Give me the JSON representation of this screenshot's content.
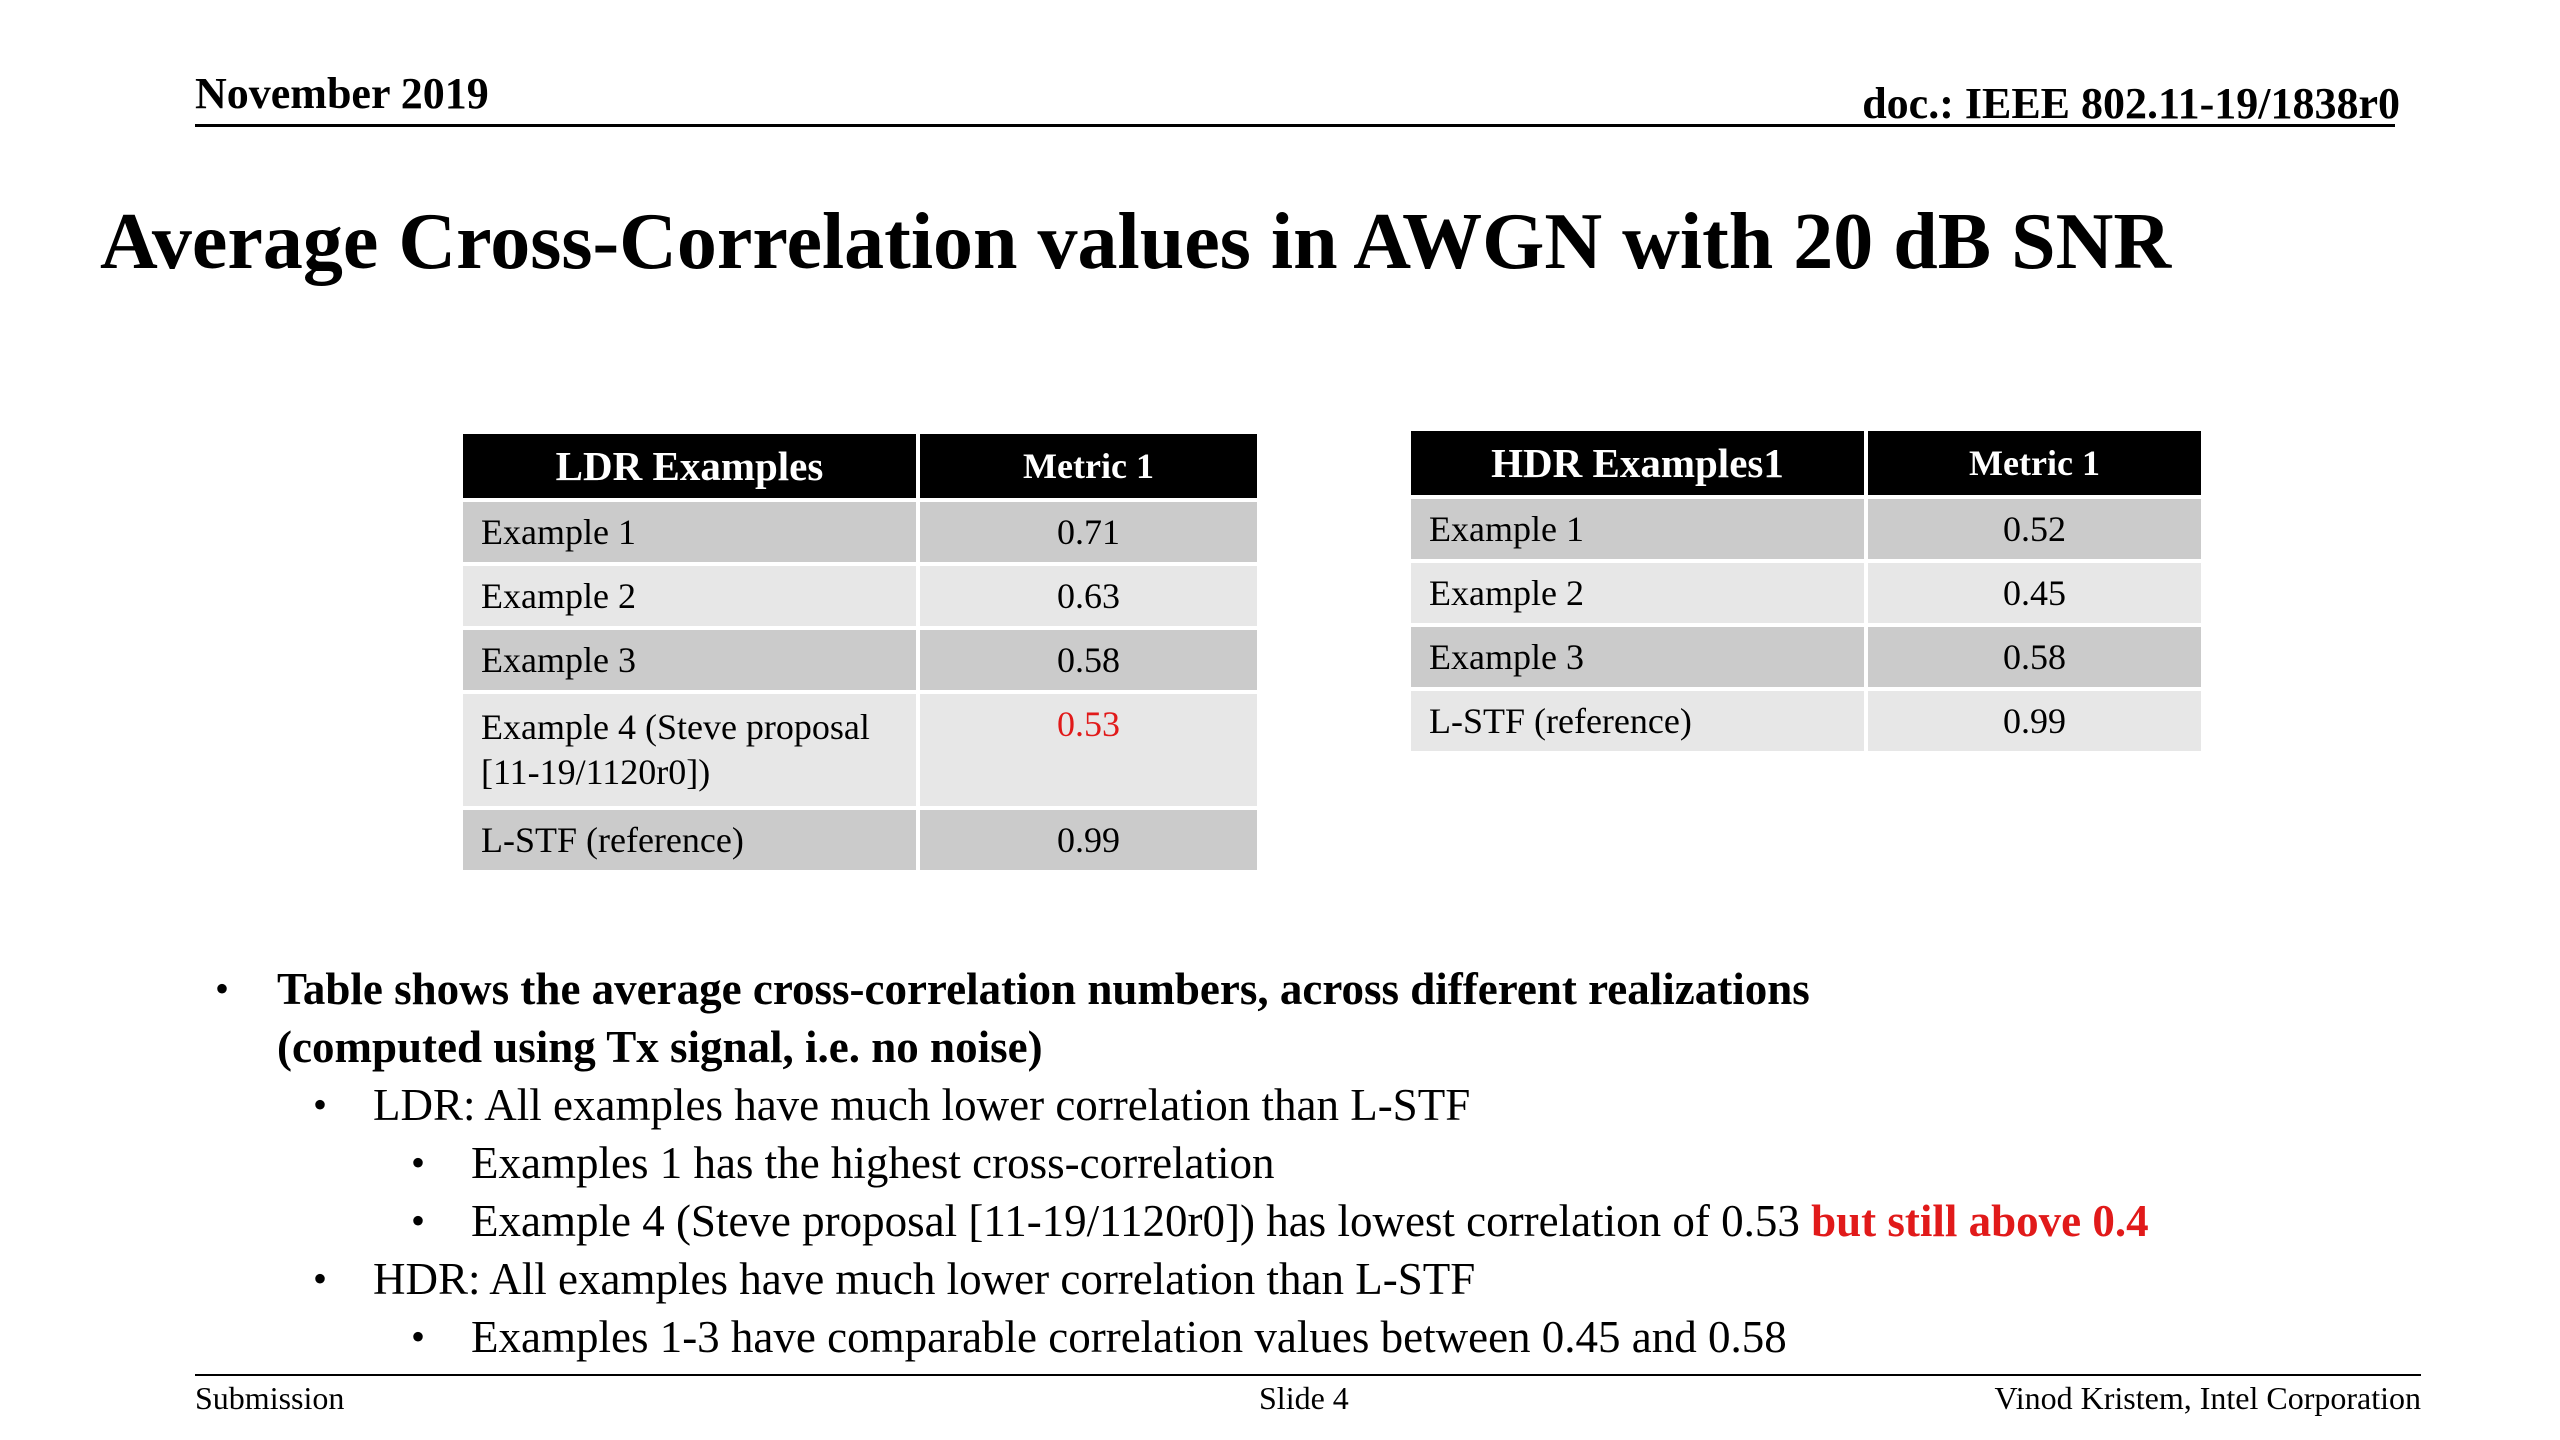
{
  "header": {
    "date": "November 2019",
    "doc_id": "doc.: IEEE 802.11-19/1838r0"
  },
  "title": "Average Cross-Correlation values in AWGN with 20 dB SNR",
  "ldr_table": {
    "headers": [
      "LDR Examples",
      "Metric 1"
    ],
    "rows": [
      {
        "name": "Example 1",
        "value": "0.71"
      },
      {
        "name": "Example 2",
        "value": "0.63"
      },
      {
        "name": "Example 3",
        "value": "0.58"
      },
      {
        "name_line1": "Example 4 (Steve proposal",
        "name_line2": "[11-19/1120r0])",
        "value": "0.53",
        "value_color": "#e11a1a"
      },
      {
        "name": "L-STF (reference)",
        "value": "0.99"
      }
    ]
  },
  "hdr_table": {
    "headers": [
      "HDR Examples1",
      "Metric 1"
    ],
    "rows": [
      {
        "name": "Example 1",
        "value": "0.52"
      },
      {
        "name": "Example 2",
        "value": "0.45"
      },
      {
        "name": "Example 3",
        "value": "0.58"
      },
      {
        "name": "L-STF (reference)",
        "value": "0.99"
      }
    ]
  },
  "bullets": {
    "b1_line1": "Table shows the average cross-correlation numbers, across different realizations",
    "b1_line2": "(computed using Tx signal, i.e. no noise)",
    "ldr": "LDR: All examples have much lower correlation than L-STF",
    "ldr_sub1": "Examples 1 has the highest cross-correlation",
    "ldr_sub2": "Example 4 (Steve proposal [11-19/1120r0]) has lowest correlation of 0.53 ",
    "ldr_sub2_emphasis": "but still above 0.4",
    "hdr": "HDR: All examples have much lower correlation than L-STF",
    "hdr_sub1": "Examples 1-3 have comparable correlation values between 0.45 and 0.58",
    "bullet_glyph": "•"
  },
  "footer": {
    "left": "Submission",
    "center": "Slide 4",
    "right": "Vinod Kristem, Intel Corporation"
  },
  "colors": {
    "emphasis_red": "#e11a1a",
    "header_bg": "#000000",
    "row_dark": "#cbcbcb",
    "row_light": "#e7e7e7"
  }
}
